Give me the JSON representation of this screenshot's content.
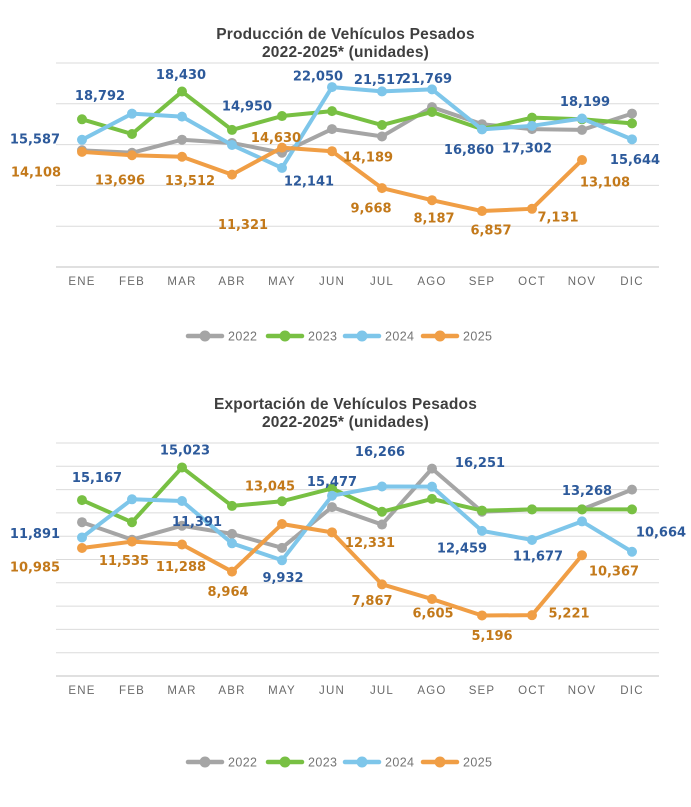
{
  "page": {
    "background": "#ffffff"
  },
  "chart_data": [
    {
      "type": "line",
      "title": "Producción de Vehículos Pesados",
      "subtitle": "2022-2025* (unidades)",
      "categories": [
        "ENE",
        "FEB",
        "MAR",
        "ABR",
        "MAY",
        "JUN",
        "JUL",
        "AGO",
        "SEP",
        "OCT",
        "NOV",
        "DIC"
      ],
      "ylim": [
        0,
        25000
      ],
      "grid_step": 5000,
      "grid": true,
      "legend_position": "bottom",
      "series": [
        {
          "name": "2022",
          "color": "#A5A5A5",
          "data_labels": false,
          "values": [
            14300,
            14000,
            15600,
            15200,
            14000,
            16900,
            16000,
            19600,
            17500,
            16900,
            16800,
            18800
          ]
        },
        {
          "name": "2023",
          "color": "#78C043",
          "data_labels": false,
          "values": [
            18100,
            16300,
            21500,
            16800,
            18500,
            19100,
            17400,
            19000,
            16900,
            18300,
            18100,
            17600
          ]
        },
        {
          "name": "2024",
          "color": "#7EC6EA",
          "data_labels": true,
          "label_color": "#2D5A9B",
          "values": [
            15587,
            18792,
            18430,
            14950,
            12141,
            22050,
            21517,
            21769,
            16860,
            17302,
            18199,
            15644
          ]
        },
        {
          "name": "2025",
          "color": "#F09E45",
          "data_labels": true,
          "label_color": "#C3791A",
          "values": [
            14108,
            13696,
            13512,
            11321,
            14630,
            14189,
            9668,
            8187,
            6857,
            7131,
            13108
          ]
        }
      ]
    },
    {
      "type": "line",
      "title": "Exportación de Vehículos Pesados",
      "subtitle": "2022-2025* (unidades)",
      "categories": [
        "ENE",
        "FEB",
        "MAR",
        "ABR",
        "MAY",
        "JUN",
        "JUL",
        "AGO",
        "SEP",
        "OCT",
        "NOV",
        "DIC"
      ],
      "ylim": [
        0,
        20000
      ],
      "grid_step": 2000,
      "grid": true,
      "legend_position": "bottom",
      "series": [
        {
          "name": "2022",
          "color": "#A5A5A5",
          "data_labels": false,
          "values": [
            13200,
            11700,
            12900,
            12200,
            11000,
            14500,
            13000,
            17800,
            14100,
            14300,
            14300,
            16000
          ]
        },
        {
          "name": "2023",
          "color": "#78C043",
          "data_labels": false,
          "values": [
            15100,
            13200,
            17900,
            14600,
            15000,
            16100,
            14100,
            15200,
            14200,
            14300,
            14300,
            14300
          ]
        },
        {
          "name": "2024",
          "color": "#7EC6EA",
          "data_labels": true,
          "label_color": "#2D5A9B",
          "values": [
            11891,
            15167,
            15023,
            11391,
            9932,
            15477,
            16266,
            16251,
            12459,
            11677,
            13268,
            10664
          ]
        },
        {
          "name": "2025",
          "color": "#F09E45",
          "data_labels": true,
          "label_color": "#C3791A",
          "values": [
            10985,
            11535,
            11288,
            8964,
            13045,
            12331,
            7867,
            6605,
            5196,
            5221,
            10367
          ]
        }
      ]
    }
  ]
}
